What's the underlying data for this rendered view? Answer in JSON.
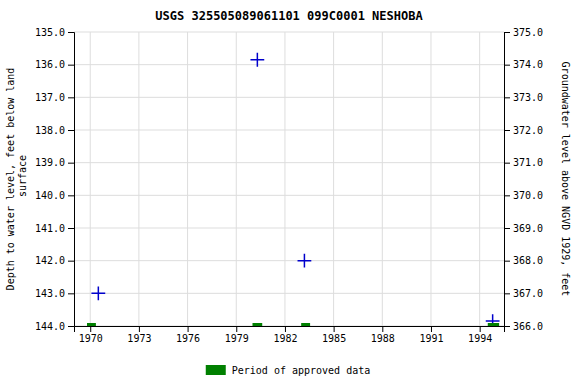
{
  "chart_data": {
    "type": "scatter",
    "title": "USGS 325505089061101 099C0001  NESHOBA",
    "ylabel": "Depth to water level, feet below land\n surface",
    "y2label": "Groundwater level above NGVD 1929, feet",
    "xlim": [
      1969.0,
      1995.5
    ],
    "ylim": [
      144.0,
      135.0
    ],
    "y2lim": [
      366.0,
      375.0
    ],
    "xticks": [
      1970,
      1973,
      1976,
      1979,
      1982,
      1985,
      1988,
      1991,
      1994
    ],
    "yticks": [
      {
        "value": 135.0,
        "label": "135.0"
      },
      {
        "value": 136.0,
        "label": "136.0"
      },
      {
        "value": 137.0,
        "label": "137.0"
      },
      {
        "value": 138.0,
        "label": "138.0"
      },
      {
        "value": 139.0,
        "label": "139.0"
      },
      {
        "value": 140.0,
        "label": "140.0"
      },
      {
        "value": 141.0,
        "label": "141.0"
      },
      {
        "value": 142.0,
        "label": "142.0"
      },
      {
        "value": 143.0,
        "label": "143.0"
      },
      {
        "value": 144.0,
        "label": "144.0"
      }
    ],
    "y2ticks": [
      {
        "value": 375.0,
        "label": "375.0"
      },
      {
        "value": 374.0,
        "label": "374.0"
      },
      {
        "value": 373.0,
        "label": "373.0"
      },
      {
        "value": 372.0,
        "label": "372.0"
      },
      {
        "value": 371.0,
        "label": "371.0"
      },
      {
        "value": 370.0,
        "label": "370.0"
      },
      {
        "value": 369.0,
        "label": "369.0"
      },
      {
        "value": 368.0,
        "label": "368.0"
      },
      {
        "value": 367.0,
        "label": "367.0"
      },
      {
        "value": 366.0,
        "label": "366.0"
      }
    ],
    "grid": true,
    "legend": "bottom",
    "series": [
      {
        "type": "scatter",
        "marker": "plus",
        "color": "#0000cc",
        "x": [
          1970.5,
          1980.3,
          1983.2,
          1994.8
        ],
        "values": [
          143.0,
          135.85,
          142.0,
          143.85
        ]
      },
      {
        "name": "Period of approved data",
        "type": "segment",
        "color": "#008000",
        "segments": [
          [
            1969.8,
            1970.35
          ],
          [
            1980.0,
            1980.6
          ],
          [
            1983.0,
            1983.55
          ],
          [
            1994.5,
            1995.2
          ]
        ],
        "values": [
          144.0,
          144.0,
          144.0,
          144.0
        ]
      }
    ]
  }
}
